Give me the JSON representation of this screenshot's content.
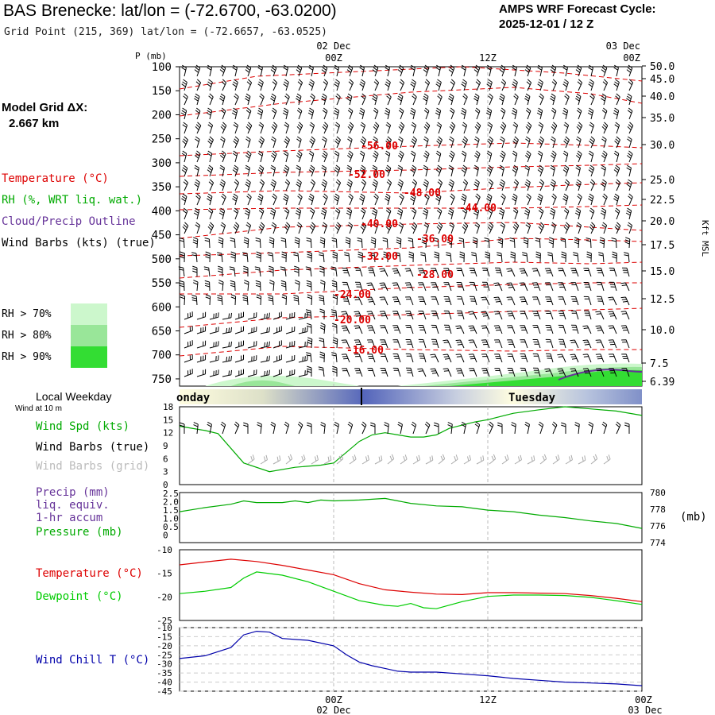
{
  "header": {
    "title": "BAS Brenecke:  lat/lon = (-72.6700, -63.0200)",
    "subtitle": "Grid Point (215, 369) lat/lon = (-72.6657, -63.0525)",
    "cycle_line1": "AMPS WRF Forecast Cycle:",
    "cycle_line2": "2025-12-01 / 12  Z"
  },
  "model_grid": {
    "label": "Model Grid ΔX:",
    "value": "2.667 km"
  },
  "legend": {
    "temperature": "Temperature (°C)",
    "rh": "RH (%, WRT liq. wat.)",
    "cloud": "Cloud/Precip Outline",
    "wind": "Wind Barbs (kts) (true)",
    "rh70": "RH > 70%",
    "rh80": "RH > 80%",
    "rh90": "RH > 90%",
    "local_weekday": "Local Weekday",
    "wind_at_10m": "Wind at 10 m"
  },
  "colors": {
    "temperature": "#dd0000",
    "rh": "#00aa00",
    "cloud": "#663399",
    "dewpoint": "#00cc00",
    "windchill": "#0000aa",
    "rh70": "#ccf7cc",
    "rh80": "#99e699",
    "rh90": "#33dd33",
    "grid_barbs": "#aaaaaa"
  },
  "time_axis": {
    "top_date_labels": [
      "02 Dec",
      "03 Dec"
    ],
    "tick_labels": [
      "00Z",
      "12Z",
      "00Z"
    ],
    "bottom_date_labels": [
      "02 Dec",
      "03 Dec"
    ],
    "weekdays": [
      "Monday",
      "Tuesday"
    ]
  },
  "chart_data": [
    {
      "type": "line",
      "name": "time-height cross section",
      "ylabel": "P (mb)",
      "ylabel_right": "Kft MSL",
      "pressure_ticks": [
        100,
        150,
        200,
        250,
        300,
        350,
        400,
        450,
        500,
        550,
        600,
        650,
        700,
        750
      ],
      "height_ticks": [
        "50.0",
        "45.0",
        "40.0",
        "35.0",
        "30.0",
        "25.0",
        "22.5",
        "20.0",
        "17.5",
        "15.0",
        "12.5",
        "10.0",
        "7.5",
        "6.39"
      ],
      "temperature_contour_labels": [
        "-56.00",
        "-52.00",
        "-48.00",
        "-44.00",
        "-40.00",
        "-36.00",
        "-32.00",
        "-28.00",
        "-24.00",
        "-20.00",
        "-16.00"
      ]
    },
    {
      "type": "line",
      "name": "wind speed",
      "title": "Wind Spd (kts)",
      "labels": [
        "Wind Spd (kts)",
        "Wind Barbs (true)",
        "Wind Barbs (grid)"
      ],
      "ylim": [
        0,
        18
      ],
      "yticks": [
        0,
        3,
        6,
        9,
        12,
        15,
        18
      ],
      "xlim": [
        -12,
        24
      ],
      "series": [
        {
          "name": "Wind Spd",
          "x": [
            -12,
            -10,
            -9,
            -7,
            -5,
            -3,
            -1,
            0,
            1,
            2,
            3,
            4,
            5,
            6,
            7,
            8,
            9,
            11,
            12,
            14,
            16,
            18,
            20,
            22,
            24
          ],
          "values": [
            13.5,
            12.5,
            11.8,
            5,
            3,
            4,
            4.5,
            5,
            7.5,
            10,
            11.5,
            12,
            11.5,
            11,
            11,
            11.5,
            13,
            14.5,
            15,
            16.5,
            17.3,
            18,
            17.5,
            17,
            16
          ]
        }
      ]
    },
    {
      "type": "line",
      "name": "pressure and precip",
      "labels": [
        "Precip (mm)",
        "liq. equiv.",
        "1-hr accum",
        "Pressure (mb)"
      ],
      "ylabel_right": "(mb)",
      "precip_ticks": [
        "2.5",
        "2.0",
        "1.5",
        "1.0",
        "0.5",
        "0"
      ],
      "pressure_ticks": [
        780,
        778,
        776,
        774
      ],
      "ylim_pressure": [
        774,
        780
      ],
      "series": [
        {
          "name": "Pressure",
          "x": [
            -12,
            -10,
            -8,
            -7,
            -6,
            -4,
            -3,
            -2,
            -1,
            0,
            2,
            4,
            5,
            6,
            8,
            10,
            12,
            14,
            16,
            18,
            20,
            22,
            24
          ],
          "values": [
            777.7,
            778.2,
            778.6,
            779.0,
            778.8,
            778.8,
            779.0,
            778.8,
            779.1,
            779.0,
            779.1,
            779.3,
            779.0,
            778.7,
            778.4,
            778.3,
            777.9,
            777.7,
            777.3,
            777.0,
            776.6,
            776.3,
            775.7
          ]
        }
      ]
    },
    {
      "type": "line",
      "name": "temperature and dewpoint",
      "labels": [
        "Temperature (°C)",
        "Dewpoint (°C)"
      ],
      "ylim": [
        -25,
        -10
      ],
      "yticks": [
        -10,
        -15,
        -20,
        -25
      ],
      "series": [
        {
          "name": "Temperature",
          "x": [
            -12,
            -10,
            -8,
            -6,
            -4,
            -2,
            0,
            2,
            4,
            6,
            8,
            10,
            12,
            14,
            16,
            18,
            20,
            22,
            24
          ],
          "values": [
            -13.2,
            -12.6,
            -12.0,
            -12.5,
            -13.3,
            -14.3,
            -15.3,
            -17.2,
            -18.5,
            -19.0,
            -19.4,
            -19.5,
            -19.1,
            -19.1,
            -19.2,
            -19.3,
            -19.7,
            -20.3,
            -21.0
          ]
        },
        {
          "name": "Dewpoint",
          "x": [
            -12,
            -10,
            -8,
            -7,
            -6,
            -4,
            -2,
            0,
            2,
            4,
            5,
            6,
            7,
            8,
            10,
            12,
            14,
            16,
            18,
            20,
            22,
            24
          ],
          "values": [
            -19.3,
            -18.8,
            -18.0,
            -16.0,
            -14.7,
            -15.4,
            -16.8,
            -18.8,
            -20.8,
            -21.8,
            -22.0,
            -21.4,
            -22.3,
            -22.5,
            -21.0,
            -19.9,
            -19.6,
            -19.6,
            -19.7,
            -20.1,
            -20.8,
            -21.6
          ]
        }
      ]
    },
    {
      "type": "line",
      "name": "wind chill",
      "labels": [
        "Wind Chill T (°C)"
      ],
      "ylim": [
        -45,
        -10
      ],
      "yticks": [
        -10,
        -15,
        -20,
        -25,
        -30,
        -35,
        -40,
        -45
      ],
      "series": [
        {
          "name": "Wind Chill",
          "x": [
            -12,
            -10,
            -8,
            -7,
            -6,
            -5,
            -4,
            -2,
            0,
            1,
            2,
            3,
            4,
            5,
            6,
            8,
            10,
            12,
            14,
            16,
            18,
            20,
            22,
            24
          ],
          "values": [
            -27,
            -25.5,
            -21,
            -14,
            -12,
            -12.5,
            -16,
            -17,
            -20,
            -25,
            -29,
            -31,
            -32.5,
            -34,
            -34.5,
            -34.5,
            -35.5,
            -36.5,
            -38,
            -39,
            -40,
            -40.5,
            -41,
            -42
          ]
        }
      ]
    }
  ]
}
